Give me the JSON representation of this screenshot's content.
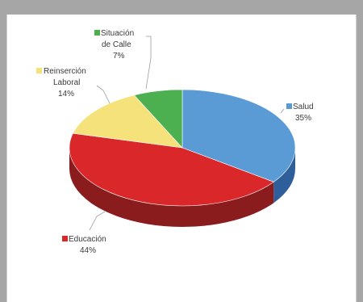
{
  "chart_data": {
    "type": "pie",
    "three_d": true,
    "title": "",
    "slices": [
      {
        "label": "Salud",
        "value": 35,
        "value_label": "35%",
        "color": "#5b9bd5",
        "side_color": "#2f5f9a"
      },
      {
        "label": "Educación",
        "value": 44,
        "value_label": "44%",
        "color": "#d9272a",
        "side_color": "#8b1c1e"
      },
      {
        "label": "Reinserción Laboral",
        "label_lines": [
          "Reinserción",
          "Laboral"
        ],
        "value": 14,
        "value_label": "14%",
        "color": "#f6e27a",
        "side_color": "#b8a84e"
      },
      {
        "label": "Situación de Calle",
        "label_lines": [
          "Situación",
          "de Calle"
        ],
        "value": 7,
        "value_label": "7%",
        "color": "#4caf50",
        "side_color": "#2e7d32"
      }
    ]
  }
}
